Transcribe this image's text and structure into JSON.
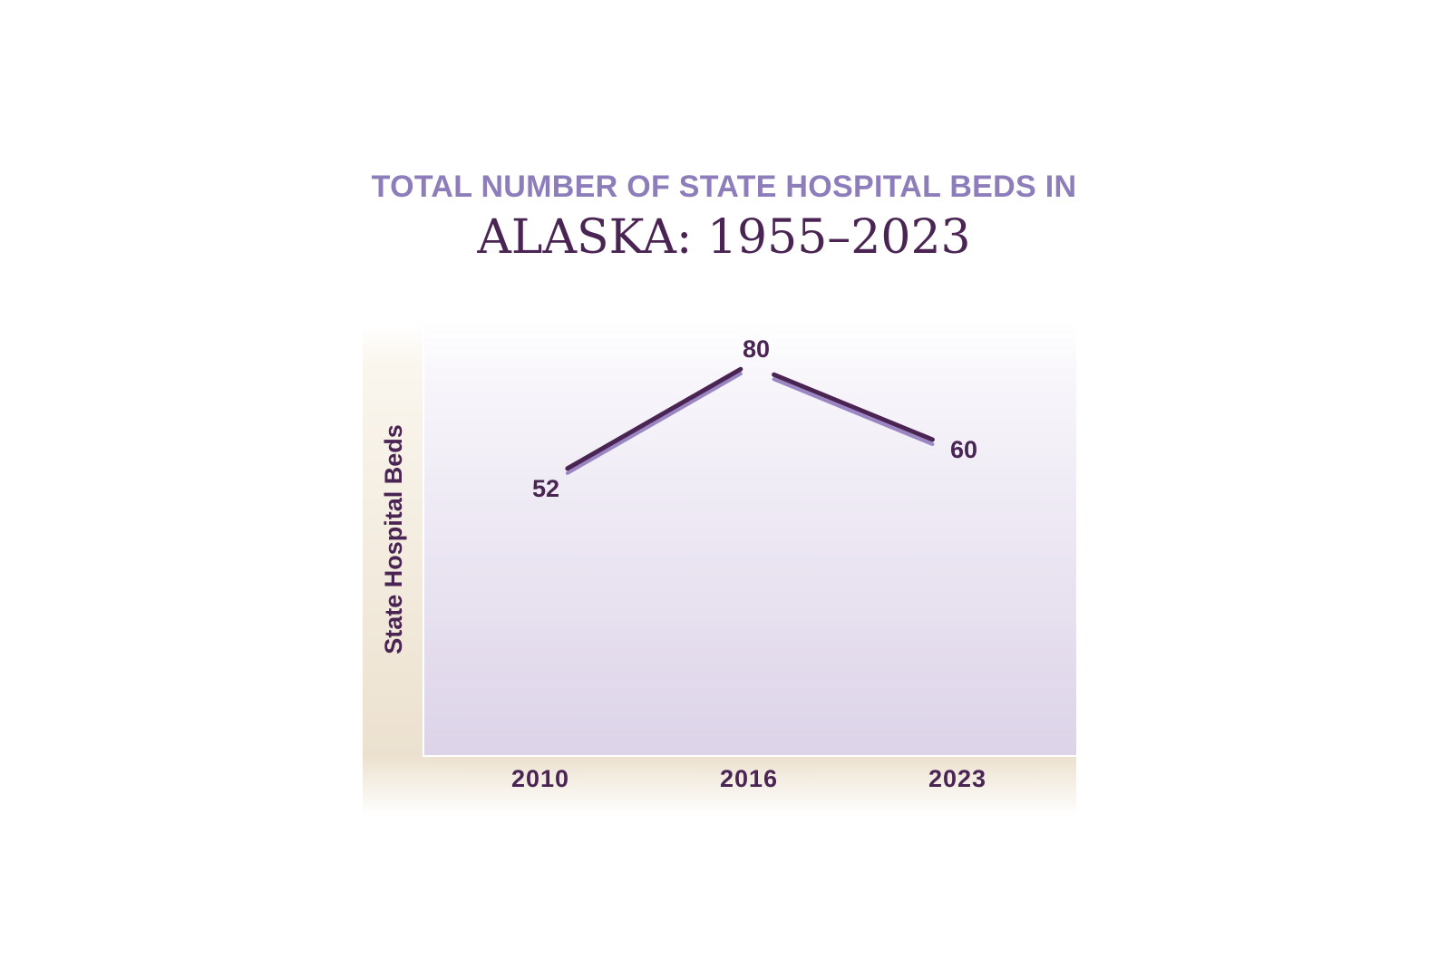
{
  "chart_data": {
    "type": "line",
    "title": "TOTAL NUMBER OF STATE HOSPITAL BEDS IN",
    "subtitle": "ALASKA: 1955–2023",
    "xlabel": "",
    "ylabel": "State Hospital Beds",
    "categories": [
      "2010",
      "2016",
      "2023"
    ],
    "values": [
      52,
      80,
      60
    ],
    "data_labels": [
      "52",
      "80",
      "60"
    ],
    "ylim": [
      0,
      80
    ],
    "grid": false,
    "legend": "none",
    "colors": {
      "line": "#4a2553",
      "line_shadow": "#9a86c4",
      "title_top": "#8e7dbb",
      "title_main": "#4a2553",
      "panel_top": "#faf9fd",
      "panel_bottom": "#dcd3e8",
      "axis_band_top": "#ece1cf",
      "axis_band_bottom": "#ffffff"
    }
  }
}
